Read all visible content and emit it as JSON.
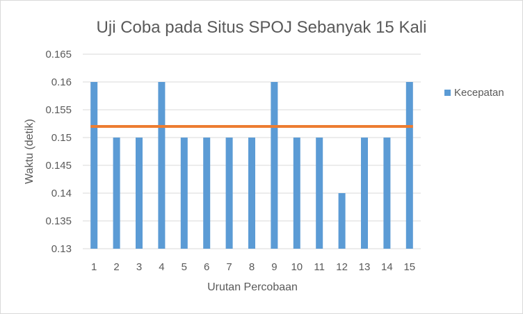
{
  "chart_data": {
    "type": "bar",
    "title": "Uji Coba pada Situs SPOJ Sebanyak 15 Kali",
    "xlabel": "Urutan Percobaan",
    "ylabel": "Waktu (detik)",
    "categories": [
      "1",
      "2",
      "3",
      "4",
      "5",
      "6",
      "7",
      "8",
      "9",
      "10",
      "11",
      "12",
      "13",
      "14",
      "15"
    ],
    "series": [
      {
        "name": "Kecepatan",
        "values": [
          0.16,
          0.15,
          0.15,
          0.16,
          0.15,
          0.15,
          0.15,
          0.15,
          0.16,
          0.15,
          0.15,
          0.14,
          0.15,
          0.15,
          0.16
        ],
        "color": "#5b9bd5"
      }
    ],
    "reference_line": {
      "value": 0.152,
      "color": "#ed7d31"
    },
    "ylim": [
      0.13,
      0.165
    ],
    "yticks": [
      "0.13",
      "0.135",
      "0.14",
      "0.145",
      "0.15",
      "0.155",
      "0.16",
      "0.165"
    ],
    "grid": true,
    "legend_position": "right"
  }
}
